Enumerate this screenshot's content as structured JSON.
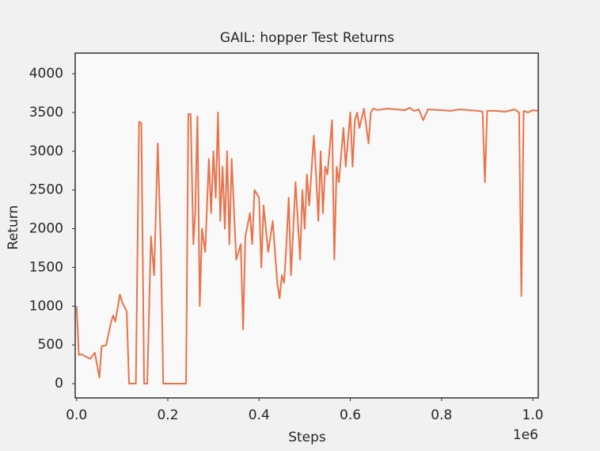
{
  "chart_data": {
    "type": "line",
    "title": "GAIL: hopper Test Returns",
    "x_label": "Steps",
    "y_label": "Return",
    "x_offset_label": "1e6",
    "xlim": [
      -0.003,
      1.012
    ],
    "ylim": [
      -184,
      4266
    ],
    "xticks": [
      {
        "value": 0,
        "label": "0.0"
      },
      0.2,
      0.4,
      0.6,
      0.8,
      {
        "value": 1,
        "label": "1.0"
      }
    ],
    "yticks": [
      0,
      500,
      1000,
      1500,
      2000,
      2500,
      3000,
      3500,
      4000
    ],
    "grid": false,
    "series": [
      {
        "color": "#e8734a",
        "x": [
          0,
          0.005,
          0.01,
          0.02,
          0.03,
          0.04,
          0.05,
          0.055,
          0.065,
          0.075,
          0.08,
          0.085,
          0.095,
          0.1,
          0.11,
          0.115,
          0.13,
          0.137,
          0.142,
          0.148,
          0.155,
          0.163,
          0.17,
          0.178,
          0.185,
          0.19,
          0.24,
          0.245,
          0.25,
          0.256,
          0.26,
          0.265,
          0.27,
          0.275,
          0.282,
          0.29,
          0.295,
          0.3,
          0.305,
          0.31,
          0.315,
          0.32,
          0.325,
          0.33,
          0.335,
          0.34,
          0.35,
          0.36,
          0.365,
          0.37,
          0.38,
          0.385,
          0.39,
          0.4,
          0.405,
          0.41,
          0.42,
          0.43,
          0.44,
          0.445,
          0.45,
          0.455,
          0.46,
          0.465,
          0.47,
          0.48,
          0.49,
          0.495,
          0.5,
          0.505,
          0.51,
          0.52,
          0.525,
          0.53,
          0.535,
          0.54,
          0.545,
          0.55,
          0.56,
          0.565,
          0.57,
          0.575,
          0.585,
          0.59,
          0.6,
          0.605,
          0.61,
          0.615,
          0.62,
          0.63,
          0.64,
          0.645,
          0.65,
          0.66,
          0.68,
          0.7,
          0.72,
          0.73,
          0.74,
          0.75,
          0.76,
          0.77,
          0.8,
          0.82,
          0.84,
          0.86,
          0.88,
          0.89,
          0.895,
          0.9,
          0.92,
          0.94,
          0.96,
          0.97,
          0.975,
          0.98,
          0.99,
          1.0,
          1.01
        ],
        "values": [
          1000,
          370,
          380,
          350,
          320,
          400,
          80,
          480,
          500,
          780,
          880,
          800,
          1150,
          1050,
          930,
          0,
          0,
          3380,
          3360,
          0,
          0,
          1900,
          1400,
          3100,
          1700,
          0,
          0,
          3480,
          3480,
          1800,
          2200,
          3450,
          1000,
          2000,
          1700,
          2900,
          2200,
          3000,
          2400,
          3500,
          2100,
          2800,
          2000,
          3000,
          1800,
          2900,
          1600,
          1800,
          700,
          1900,
          2200,
          1800,
          2500,
          2400,
          1500,
          2300,
          1700,
          2100,
          1300,
          1100,
          1400,
          1300,
          1800,
          2400,
          1400,
          2600,
          1600,
          2500,
          2000,
          2700,
          2300,
          3200,
          2700,
          2100,
          3000,
          2200,
          2800,
          2700,
          3400,
          1600,
          2800,
          2600,
          3300,
          2800,
          3500,
          2800,
          3400,
          3500,
          3300,
          3550,
          3100,
          3500,
          3550,
          3530,
          3550,
          3540,
          3530,
          3560,
          3520,
          3540,
          3400,
          3540,
          3530,
          3520,
          3540,
          3530,
          3520,
          3510,
          2600,
          3520,
          3520,
          3510,
          3540,
          3500,
          1130,
          3520,
          3500,
          3530,
          3520
        ]
      }
    ]
  }
}
